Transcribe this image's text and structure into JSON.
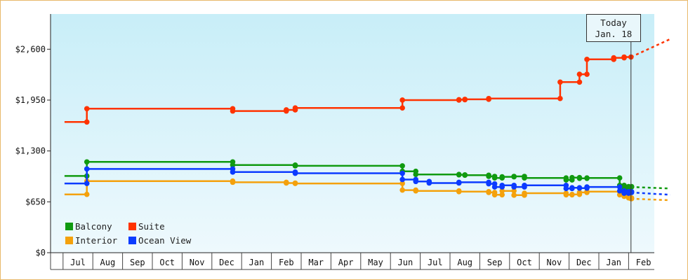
{
  "chart_data": {
    "type": "line",
    "title": "",
    "xlabel": "",
    "ylabel": "",
    "y_ticks": [
      "$0",
      "$650",
      "$1,300",
      "$1,950",
      "$2,600"
    ],
    "y_tick_values": [
      0,
      650,
      1300,
      1950,
      2600
    ],
    "ylim": [
      0,
      3050
    ],
    "x_ticks": [
      "Jul",
      "Aug",
      "Sep",
      "Oct",
      "Nov",
      "Dec",
      "Jan",
      "Feb",
      "Mar",
      "Apr",
      "May",
      "Jun",
      "Jul",
      "Aug",
      "Sep",
      "Oct",
      "Nov",
      "Dec",
      "Jan",
      "Feb"
    ],
    "x_range_months": [
      -0.45,
      19.9
    ],
    "grid": false,
    "legend_position": "bottom-left",
    "today": {
      "label_line1": "Today",
      "label_line2": "Jan. 18",
      "x": 18.58
    },
    "series": [
      {
        "name": "Balcony",
        "color": "#109a10",
        "points": [
          [
            -0.45,
            980
          ],
          [
            0.3,
            980
          ],
          [
            0.3,
            1160
          ],
          [
            5.2,
            1160
          ],
          [
            5.2,
            1120
          ],
          [
            7.3,
            1120
          ],
          [
            7.3,
            1110
          ],
          [
            8.2,
            1110
          ],
          [
            8.2,
            1110
          ],
          [
            10.9,
            1110
          ],
          [
            10.9,
            1040
          ],
          [
            11.35,
            1040
          ],
          [
            11.35,
            1000
          ],
          [
            12.8,
            1000
          ],
          [
            12.8,
            995
          ],
          [
            13.0,
            995
          ],
          [
            13.0,
            990
          ],
          [
            13.8,
            990
          ],
          [
            13.8,
            975
          ],
          [
            14.0,
            975
          ],
          [
            14.0,
            955
          ],
          [
            14.25,
            955
          ],
          [
            14.25,
            970
          ],
          [
            14.65,
            970
          ],
          [
            14.65,
            975
          ],
          [
            15.0,
            975
          ],
          [
            15.0,
            955
          ],
          [
            16.4,
            955
          ],
          [
            16.4,
            930
          ],
          [
            16.6,
            930
          ],
          [
            16.6,
            960
          ],
          [
            16.85,
            960
          ],
          [
            16.85,
            950
          ],
          [
            17.1,
            950
          ],
          [
            17.1,
            955
          ],
          [
            18.2,
            955
          ],
          [
            18.2,
            860
          ],
          [
            18.35,
            860
          ],
          [
            18.35,
            820
          ],
          [
            18.5,
            820
          ],
          [
            18.5,
            845
          ],
          [
            18.6,
            845
          ],
          [
            18.6,
            840
          ],
          [
            18.58,
            840
          ]
        ],
        "projection": [
          [
            18.58,
            840
          ],
          [
            19.9,
            820
          ]
        ]
      },
      {
        "name": "Suite",
        "color": "#ff3300",
        "points": [
          [
            -0.45,
            1670
          ],
          [
            0.3,
            1670
          ],
          [
            0.3,
            1840
          ],
          [
            5.2,
            1840
          ],
          [
            5.2,
            1810
          ],
          [
            7.0,
            1810
          ],
          [
            7.0,
            1825
          ],
          [
            7.3,
            1825
          ],
          [
            7.3,
            1850
          ],
          [
            10.9,
            1850
          ],
          [
            10.9,
            1950
          ],
          [
            12.8,
            1950
          ],
          [
            12.8,
            1955
          ],
          [
            13.0,
            1955
          ],
          [
            13.0,
            1960
          ],
          [
            13.8,
            1960
          ],
          [
            13.8,
            1970
          ],
          [
            16.2,
            1970
          ],
          [
            16.2,
            2180
          ],
          [
            16.4,
            2180
          ],
          [
            16.4,
            2180
          ],
          [
            16.85,
            2180
          ],
          [
            16.85,
            2280
          ],
          [
            17.1,
            2280
          ],
          [
            17.1,
            2470
          ],
          [
            18.0,
            2470
          ],
          [
            18.0,
            2490
          ],
          [
            18.35,
            2490
          ],
          [
            18.35,
            2500
          ],
          [
            18.58,
            2500
          ]
        ],
        "projection": [
          [
            18.58,
            2500
          ],
          [
            19.9,
            2730
          ]
        ]
      },
      {
        "name": "Interior",
        "color": "#f4a10c",
        "points": [
          [
            -0.45,
            745
          ],
          [
            0.3,
            745
          ],
          [
            0.3,
            915
          ],
          [
            5.2,
            915
          ],
          [
            5.2,
            900
          ],
          [
            7.0,
            900
          ],
          [
            7.0,
            890
          ],
          [
            7.3,
            890
          ],
          [
            7.3,
            885
          ],
          [
            10.9,
            885
          ],
          [
            10.9,
            800
          ],
          [
            11.35,
            800
          ],
          [
            11.35,
            790
          ],
          [
            12.8,
            790
          ],
          [
            12.8,
            780
          ],
          [
            13.8,
            780
          ],
          [
            13.8,
            770
          ],
          [
            14.0,
            770
          ],
          [
            14.0,
            740
          ],
          [
            14.25,
            740
          ],
          [
            14.25,
            790
          ],
          [
            14.65,
            790
          ],
          [
            14.65,
            735
          ],
          [
            15.0,
            735
          ],
          [
            15.0,
            760
          ],
          [
            16.4,
            760
          ],
          [
            16.4,
            740
          ],
          [
            16.6,
            740
          ],
          [
            16.6,
            745
          ],
          [
            16.85,
            745
          ],
          [
            16.85,
            770
          ],
          [
            17.1,
            770
          ],
          [
            17.1,
            780
          ],
          [
            18.2,
            780
          ],
          [
            18.2,
            740
          ],
          [
            18.35,
            740
          ],
          [
            18.35,
            720
          ],
          [
            18.5,
            720
          ],
          [
            18.5,
            700
          ],
          [
            18.6,
            700
          ],
          [
            18.6,
            690
          ],
          [
            18.58,
            690
          ]
        ],
        "projection": [
          [
            18.58,
            690
          ],
          [
            19.9,
            670
          ]
        ]
      },
      {
        "name": "Ocean View",
        "color": "#0b3bff",
        "points": [
          [
            -0.45,
            885
          ],
          [
            0.3,
            885
          ],
          [
            0.3,
            1070
          ],
          [
            5.2,
            1070
          ],
          [
            5.2,
            1030
          ],
          [
            7.0,
            1030
          ],
          [
            7.0,
            1030
          ],
          [
            7.3,
            1030
          ],
          [
            7.3,
            1015
          ],
          [
            10.9,
            1015
          ],
          [
            10.9,
            935
          ],
          [
            11.35,
            935
          ],
          [
            11.35,
            910
          ],
          [
            11.8,
            910
          ],
          [
            11.8,
            890
          ],
          [
            12.8,
            890
          ],
          [
            12.8,
            900
          ],
          [
            13.8,
            900
          ],
          [
            13.8,
            880
          ],
          [
            14.0,
            880
          ],
          [
            14.0,
            840
          ],
          [
            14.25,
            840
          ],
          [
            14.25,
            860
          ],
          [
            14.65,
            860
          ],
          [
            14.65,
            840
          ],
          [
            15.0,
            840
          ],
          [
            15.0,
            860
          ],
          [
            16.4,
            860
          ],
          [
            16.4,
            820
          ],
          [
            16.6,
            820
          ],
          [
            16.6,
            830
          ],
          [
            16.85,
            830
          ],
          [
            16.85,
            825
          ],
          [
            17.1,
            825
          ],
          [
            17.1,
            840
          ],
          [
            18.2,
            840
          ],
          [
            18.2,
            790
          ],
          [
            18.35,
            790
          ],
          [
            18.35,
            760
          ],
          [
            18.5,
            760
          ],
          [
            18.5,
            780
          ],
          [
            18.6,
            780
          ],
          [
            18.6,
            770
          ],
          [
            18.58,
            770
          ]
        ],
        "projection": [
          [
            18.58,
            770
          ],
          [
            19.9,
            740
          ]
        ]
      }
    ]
  }
}
